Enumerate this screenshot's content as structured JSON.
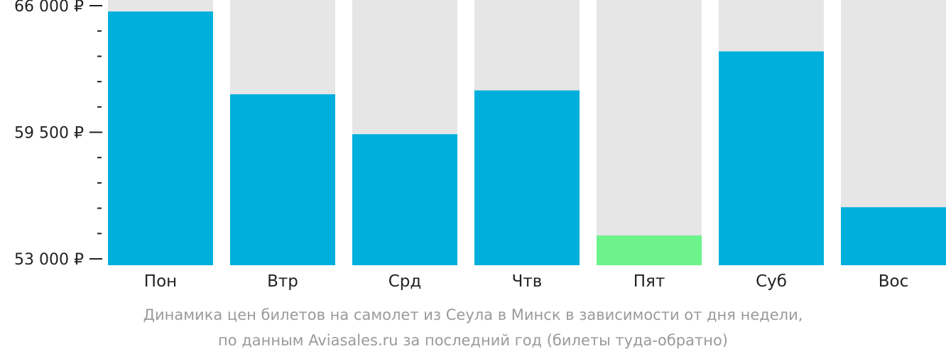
{
  "chart_data": {
    "type": "bar",
    "categories": [
      "Пон",
      "Втр",
      "Срд",
      "Чтв",
      "Пят",
      "Суб",
      "Вос"
    ],
    "values": [
      65700,
      61450,
      59400,
      61650,
      54200,
      63650,
      55650
    ],
    "ylim": [
      53000,
      66000
    ],
    "y_major_ticks": [
      53000,
      59500,
      66000
    ],
    "y_tick_labels": [
      "53 000 ₽",
      "59 500 ₽",
      "66 000 ₽"
    ],
    "y_minor_step": 1300,
    "highlight_index": 4,
    "colors": {
      "bar": "#00afdc",
      "highlight": "#6cf38a",
      "track": "#e6e6e6",
      "axis_text": "#222222",
      "caption_text": "#9a9a9a"
    },
    "grid": false,
    "legend": "none"
  },
  "caption": {
    "line1": "Динамика цен билетов на самолет из Сеула в Минск в зависимости от дня недели,",
    "line2": "по данным Aviasales.ru за последний год (билеты туда-обратно)"
  }
}
